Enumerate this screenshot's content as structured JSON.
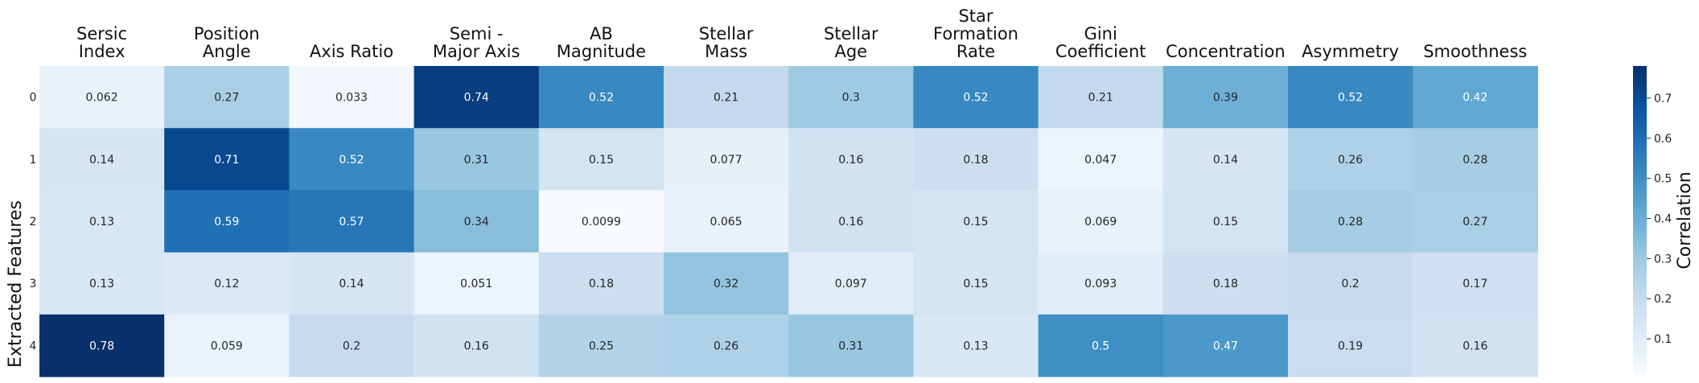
{
  "chart_data": {
    "type": "heatmap",
    "title": "",
    "xlabel": "",
    "ylabel": "Extracted Features",
    "columns": [
      [
        "Sersic",
        "Index"
      ],
      [
        "Position",
        "Angle"
      ],
      [
        "Axis Ratio"
      ],
      [
        "Semi -",
        "Major Axis"
      ],
      [
        "AB",
        "Magnitude"
      ],
      [
        "Stellar",
        "Mass"
      ],
      [
        "Stellar",
        "Age"
      ],
      [
        "Star",
        "Formation",
        "Rate"
      ],
      [
        "Gini",
        "Coefficient"
      ],
      [
        "Concentration"
      ],
      [
        "Asymmetry"
      ],
      [
        "Smoothness"
      ]
    ],
    "rows": [
      "0",
      "1",
      "2",
      "3",
      "4"
    ],
    "values": [
      [
        "0.062",
        "0.27",
        "0.033",
        "0.74",
        "0.52",
        "0.21",
        "0.3",
        "0.52",
        "0.21",
        "0.39",
        "0.52",
        "0.42"
      ],
      [
        "0.14",
        "0.71",
        "0.52",
        "0.31",
        "0.15",
        "0.077",
        "0.16",
        "0.18",
        "0.047",
        "0.14",
        "0.26",
        "0.28"
      ],
      [
        "0.13",
        "0.59",
        "0.57",
        "0.34",
        "0.0099",
        "0.065",
        "0.16",
        "0.15",
        "0.069",
        "0.15",
        "0.28",
        "0.27"
      ],
      [
        "0.13",
        "0.12",
        "0.14",
        "0.051",
        "0.18",
        "0.32",
        "0.097",
        "0.15",
        "0.093",
        "0.18",
        "0.2",
        "0.17"
      ],
      [
        "0.78",
        "0.059",
        "0.2",
        "0.16",
        "0.25",
        "0.26",
        "0.31",
        "0.13",
        "0.5",
        "0.47",
        "0.19",
        "0.16"
      ]
    ],
    "colorbar": {
      "label": "Correlation",
      "range": [
        0.0099,
        0.78
      ],
      "ticks": [
        "0.1",
        "0.2",
        "0.3",
        "0.4",
        "0.5",
        "0.6",
        "0.7"
      ],
      "colormap": "Blues"
    },
    "grid": false,
    "legend": "colorbar right"
  }
}
